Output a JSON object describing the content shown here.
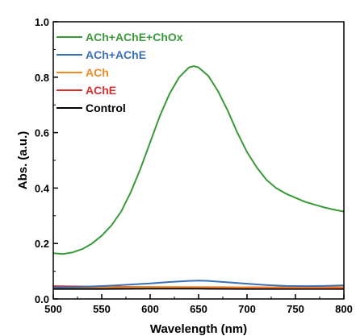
{
  "chart_data": {
    "type": "line",
    "xlabel": "Wavelength (nm)",
    "ylabel": "Abs. (a.u.)",
    "xlim": [
      500,
      800
    ],
    "ylim": [
      0.0,
      1.0
    ],
    "xticks": [
      {
        "value": 500,
        "label": "500"
      },
      {
        "value": 550,
        "label": "550"
      },
      {
        "value": 600,
        "label": "600"
      },
      {
        "value": 650,
        "label": "650"
      },
      {
        "value": 700,
        "label": "700"
      },
      {
        "value": 750,
        "label": "750"
      },
      {
        "value": 800,
        "label": "800"
      }
    ],
    "yticks": [
      {
        "value": 0.0,
        "label": "0.0"
      },
      {
        "value": 0.2,
        "label": "0.2"
      },
      {
        "value": 0.4,
        "label": "0.4"
      },
      {
        "value": 0.6,
        "label": "0.6"
      },
      {
        "value": 0.8,
        "label": "0.8"
      },
      {
        "value": 1.0,
        "label": "1.0"
      }
    ],
    "grid": false,
    "legend_position": "top-left",
    "series": [
      {
        "name": "ACh+AChE+ChOx",
        "color": "#3a9a3a",
        "x": [
          500,
          510,
          520,
          530,
          540,
          550,
          560,
          570,
          580,
          590,
          600,
          610,
          620,
          630,
          640,
          645,
          650,
          660,
          670,
          680,
          690,
          700,
          710,
          720,
          730,
          740,
          750,
          760,
          770,
          780,
          790,
          800
        ],
        "y": [
          0.165,
          0.162,
          0.168,
          0.18,
          0.2,
          0.228,
          0.265,
          0.315,
          0.385,
          0.47,
          0.565,
          0.66,
          0.74,
          0.8,
          0.835,
          0.84,
          0.835,
          0.805,
          0.75,
          0.68,
          0.6,
          0.53,
          0.475,
          0.43,
          0.4,
          0.38,
          0.365,
          0.35,
          0.34,
          0.33,
          0.322,
          0.315
        ]
      },
      {
        "name": "ACh+AChE",
        "color": "#3b6fb6",
        "x": [
          500,
          520,
          540,
          560,
          580,
          600,
          620,
          640,
          650,
          660,
          680,
          700,
          720,
          740,
          760,
          780,
          800
        ],
        "y": [
          0.042,
          0.043,
          0.045,
          0.048,
          0.052,
          0.056,
          0.061,
          0.065,
          0.066,
          0.065,
          0.06,
          0.055,
          0.05,
          0.047,
          0.046,
          0.047,
          0.049
        ]
      },
      {
        "name": "ACh",
        "color": "#f08a24",
        "x": [
          500,
          550,
          600,
          650,
          700,
          750,
          800
        ],
        "y": [
          0.042,
          0.042,
          0.043,
          0.043,
          0.042,
          0.042,
          0.043
        ]
      },
      {
        "name": "AChE",
        "color": "#d93030",
        "x": [
          500,
          550,
          600,
          650,
          700,
          750,
          800
        ],
        "y": [
          0.046,
          0.044,
          0.043,
          0.042,
          0.041,
          0.04,
          0.04
        ]
      },
      {
        "name": "Control",
        "color": "#000000",
        "x": [
          500,
          550,
          600,
          650,
          700,
          750,
          800
        ],
        "y": [
          0.036,
          0.036,
          0.037,
          0.037,
          0.036,
          0.036,
          0.036
        ]
      }
    ]
  }
}
